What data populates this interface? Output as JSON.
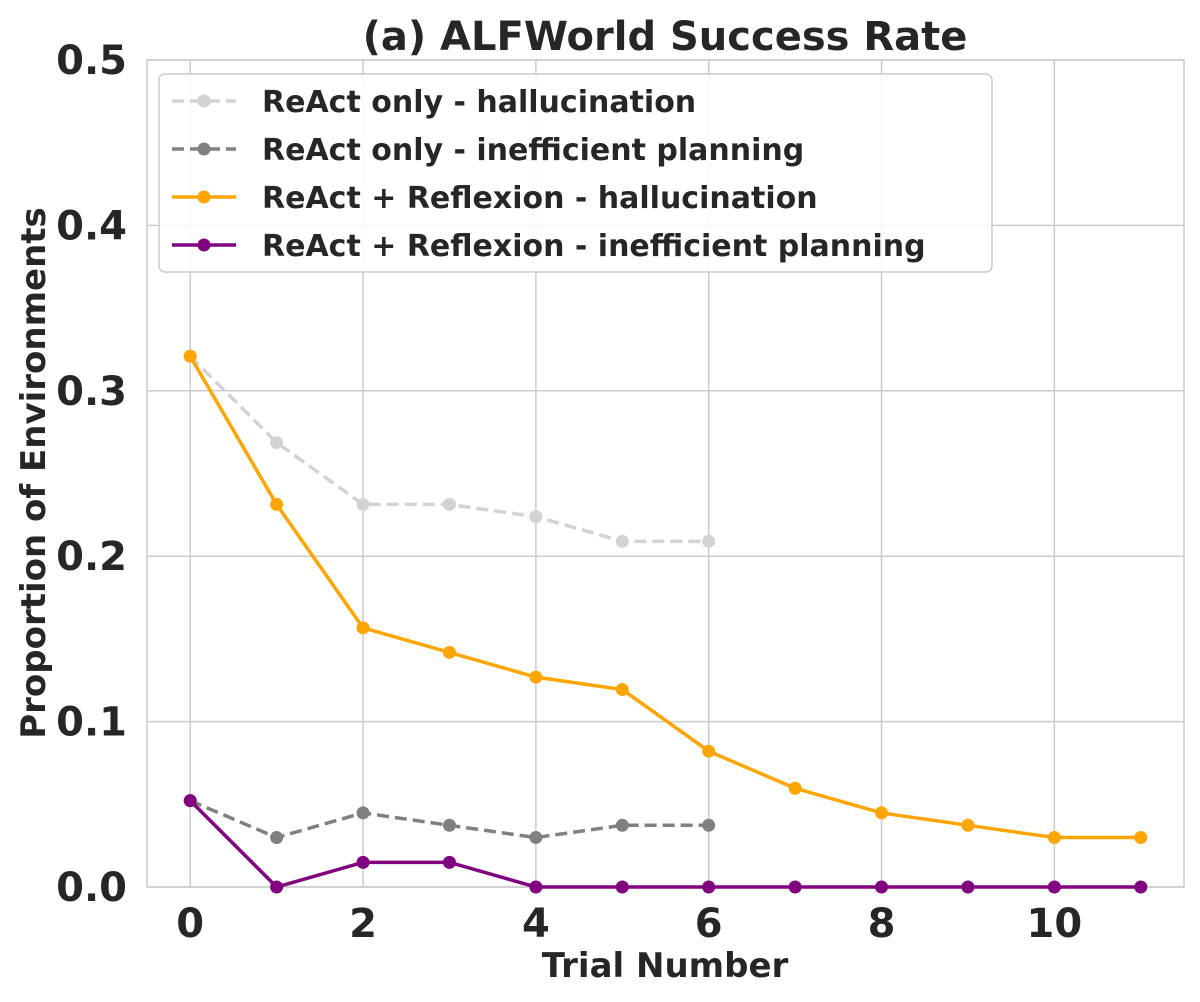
{
  "chart_data": {
    "type": "line",
    "title": "(a) ALFWorld Success Rate",
    "xlabel": "Trial Number",
    "ylabel": "Proportion of Environments",
    "xlim": [
      -0.5,
      11.5
    ],
    "ylim": [
      0,
      0.5
    ],
    "xticks": [
      0,
      2,
      4,
      6,
      8,
      10
    ],
    "yticks": [
      0.0,
      0.1,
      0.2,
      0.3,
      0.4,
      0.5
    ],
    "ytick_labels": [
      "0.0",
      "0.1",
      "0.2",
      "0.3",
      "0.4",
      "0.5"
    ],
    "grid": true,
    "legend_position": "top-left",
    "series": [
      {
        "name": "ReAct only - hallucination",
        "color": "#d3d3d3",
        "dashed": true,
        "x": [
          0,
          1,
          2,
          3,
          4,
          5,
          6
        ],
        "values": [
          0.3209,
          0.2687,
          0.2313,
          0.2313,
          0.2239,
          0.209,
          0.209
        ]
      },
      {
        "name": "ReAct only - inefficient planning",
        "color": "#808080",
        "dashed": true,
        "x": [
          0,
          1,
          2,
          3,
          4,
          5,
          6
        ],
        "values": [
          0.0522,
          0.0299,
          0.0448,
          0.0373,
          0.0299,
          0.0373,
          0.0373
        ]
      },
      {
        "name": "ReAct + Reflexion - hallucination",
        "color": "#ffa500",
        "dashed": false,
        "x": [
          0,
          1,
          2,
          3,
          4,
          5,
          6,
          7,
          8,
          9,
          10,
          11
        ],
        "values": [
          0.3209,
          0.2313,
          0.1567,
          0.1418,
          0.1269,
          0.1194,
          0.0821,
          0.0597,
          0.0448,
          0.0373,
          0.0299,
          0.0299
        ]
      },
      {
        "name": "ReAct + Reflexion - inefficient planning",
        "color": "#800080",
        "dashed": false,
        "x": [
          0,
          1,
          2,
          3,
          4,
          5,
          6,
          7,
          8,
          9,
          10,
          11
        ],
        "values": [
          0.0522,
          0,
          0.0149,
          0.0149,
          0,
          0,
          0,
          0,
          0,
          0,
          0,
          0
        ]
      }
    ]
  }
}
